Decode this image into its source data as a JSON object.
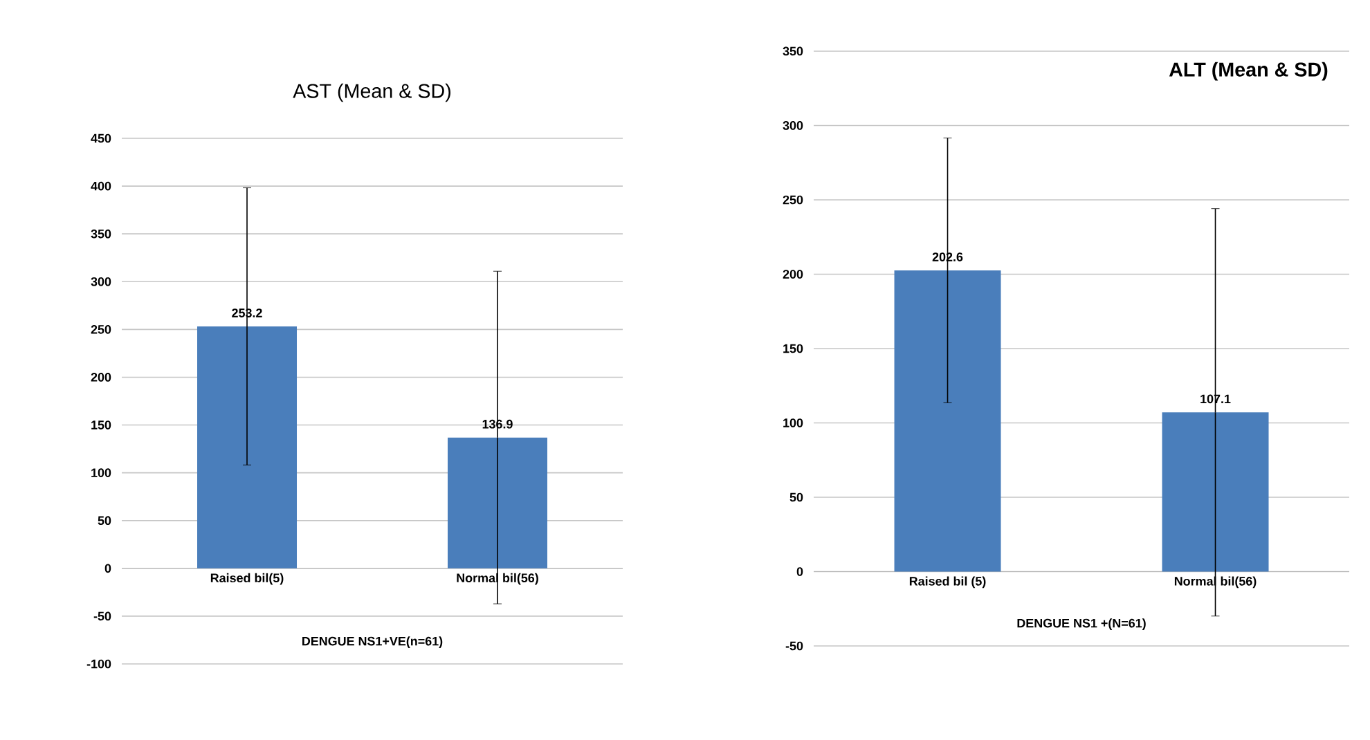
{
  "chart_data": [
    {
      "type": "bar",
      "title": "AST (Mean & SD)",
      "xlabel": "DENGUE NS1+VE(n=61)",
      "categories": [
        "Raised bil(5)",
        "Normal bil(56)"
      ],
      "values": [
        253.2,
        136.9
      ],
      "errors": [
        145,
        174
      ],
      "color": "#4a7ebb",
      "ylim": [
        -100,
        450
      ],
      "yticks": [
        -100,
        -50,
        0,
        50,
        100,
        150,
        200,
        250,
        300,
        350,
        400,
        450
      ],
      "grid": "y",
      "data_labels": true
    },
    {
      "type": "bar",
      "title": "**ALT** (Mean & SD)",
      "xlabel": "DENGUE NS1 +(N=61)",
      "categories": [
        "Raised bil (5)",
        "Normal bil(56)"
      ],
      "values": [
        202.6,
        107.1
      ],
      "errors": [
        89,
        137
      ],
      "color": "#4a7ebb",
      "ylim": [
        -50,
        350
      ],
      "yticks": [
        -50,
        0,
        50,
        100,
        150,
        200,
        250,
        300,
        350
      ],
      "grid": "y",
      "data_labels": true
    }
  ]
}
